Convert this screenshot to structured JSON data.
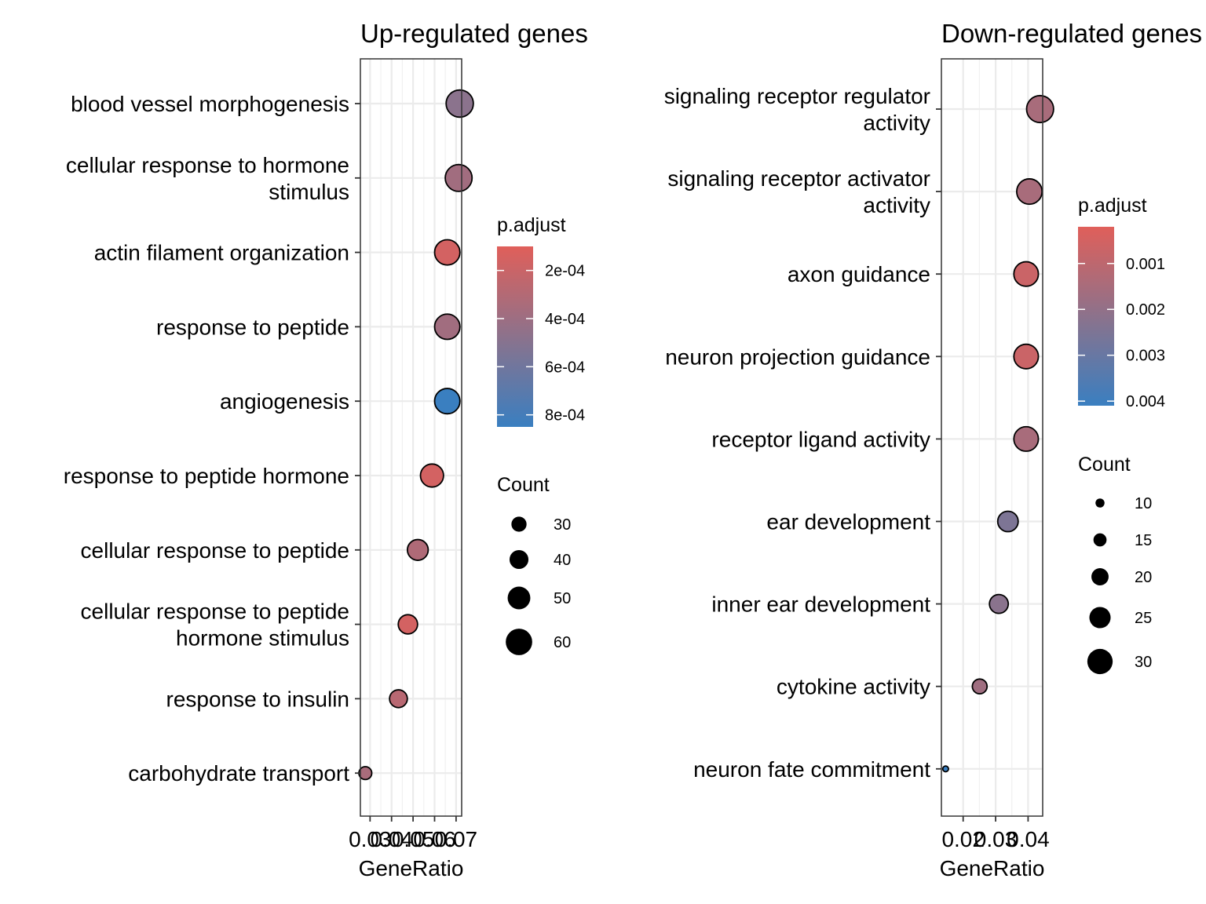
{
  "chart_data": [
    {
      "type": "scatter",
      "title": "Up-regulated genes",
      "xlabel": "GeneRatio",
      "ylabel": "",
      "x_ticks": [
        0.03,
        0.04,
        0.05,
        0.06,
        0.07
      ],
      "x_tick_labels": [
        "0.03",
        "0.04",
        "0.05",
        "0.06",
        "0.07"
      ],
      "xlim": [
        0.0255,
        0.0726
      ],
      "grid": true,
      "categories": [
        "blood vessel morphogenesis",
        "cellular response to hormone stimulus",
        "actin filament organization",
        "response to peptide",
        "angiogenesis",
        "response to peptide hormone",
        "cellular response to peptide",
        "cellular response to peptide hormone stimulus",
        "response to insulin",
        "carbohydrate transport"
      ],
      "category_lines": [
        [
          "blood vessel morphogenesis"
        ],
        [
          "cellular response to hormone",
          "stimulus"
        ],
        [
          "actin filament organization"
        ],
        [
          "response to peptide"
        ],
        [
          "angiogenesis"
        ],
        [
          "response to peptide hormone"
        ],
        [
          "cellular response to peptide"
        ],
        [
          "cellular response to peptide",
          "hormone stimulus"
        ],
        [
          "response to insulin"
        ],
        [
          "carbohydrate transport"
        ]
      ],
      "gene_ratio": [
        0.0717,
        0.0712,
        0.0659,
        0.0659,
        0.0659,
        0.0588,
        0.0522,
        0.0476,
        0.0432,
        0.0278
      ],
      "count": [
        62,
        61,
        57,
        57,
        57,
        51,
        45,
        41,
        37,
        24
      ],
      "p_adjust": [
        0.00048,
        0.00038,
        0.00016,
        0.00038,
        0.00085,
        0.00016,
        0.00032,
        0.00016,
        0.00028,
        0.00035
      ],
      "color_legend": {
        "title": "p.adjust",
        "range": [
          0.0001,
          0.00085
        ],
        "ticks": [
          0.0002,
          0.0004,
          0.0006,
          0.0008
        ],
        "tick_labels": [
          "2e-04",
          "4e-04",
          "6e-04",
          "8e-04"
        ],
        "color_low_p": "#e05f5a",
        "color_high_p": "#3a7fc0"
      },
      "size_legend": {
        "title": "Count",
        "values": [
          30,
          40,
          50,
          60
        ],
        "labels": [
          "30",
          "40",
          "50",
          "60"
        ]
      }
    },
    {
      "type": "scatter",
      "title": "Down-regulated genes",
      "xlabel": "GeneRatio",
      "ylabel": "",
      "x_ticks": [
        0.02,
        0.03,
        0.04
      ],
      "x_tick_labels": [
        "0.02",
        "0.03",
        "0.04"
      ],
      "xlim": [
        0.0133,
        0.0445
      ],
      "grid": true,
      "categories": [
        "signaling receptor regulator activity",
        "signaling receptor activator activity",
        "axon guidance",
        "neuron projection guidance",
        "receptor ligand activity",
        "ear development",
        "inner ear development",
        "cytokine activity",
        "neuron fate commitment"
      ],
      "category_lines": [
        [
          "signaling receptor regulator",
          "activity"
        ],
        [
          "signaling receptor activator",
          "activity"
        ],
        [
          "axon guidance"
        ],
        [
          "neuron projection guidance"
        ],
        [
          "receptor ligand activity"
        ],
        [
          "ear development"
        ],
        [
          "inner ear development"
        ],
        [
          "cytokine activity"
        ],
        [
          "neuron fate commitment"
        ]
      ],
      "gene_ratio": [
        0.0437,
        0.0404,
        0.0394,
        0.0394,
        0.0394,
        0.0338,
        0.031,
        0.0251,
        0.0146
      ],
      "count": [
        32,
        30,
        29,
        29,
        29,
        24,
        22,
        17,
        6
      ],
      "p_adjust": [
        0.0015,
        0.0015,
        0.0007,
        0.0007,
        0.0015,
        0.0025,
        0.0022,
        0.0017,
        0.0041
      ],
      "color_legend": {
        "title": "p.adjust",
        "range": [
          0.0002,
          0.0041
        ],
        "ticks": [
          0.001,
          0.002,
          0.003,
          0.004
        ],
        "tick_labels": [
          "0.001",
          "0.002",
          "0.003",
          "0.004"
        ],
        "color_low_p": "#e05f5a",
        "color_high_p": "#3a7fc0"
      },
      "size_legend": {
        "title": "Count",
        "values": [
          10,
          15,
          20,
          25,
          30
        ],
        "labels": [
          "10",
          "15",
          "20",
          "25",
          "30"
        ]
      }
    }
  ]
}
